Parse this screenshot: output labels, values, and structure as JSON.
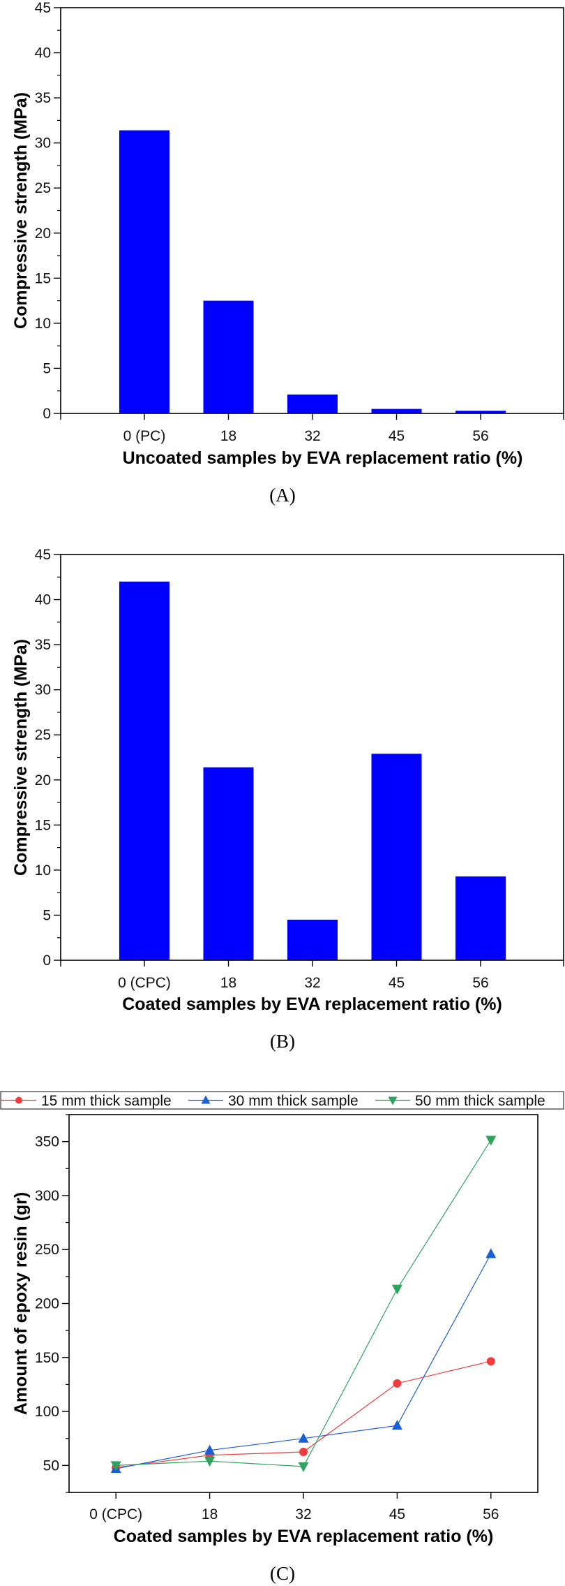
{
  "chart_data": [
    {
      "type": "bar",
      "panel_label": "(A)",
      "categories": [
        "0 (PC)",
        "18",
        "32",
        "45",
        "56"
      ],
      "values": [
        31.4,
        12.5,
        2.1,
        0.5,
        0.3
      ],
      "xlabel": "Uncoated samples by EVA replacement ratio (%)",
      "ylabel": "Compressive strength (MPa)",
      "ylim": [
        0,
        45
      ],
      "yticks": [
        0,
        5,
        10,
        15,
        20,
        25,
        30,
        35,
        40,
        45
      ],
      "bar_color": "#0000FF",
      "grid": false
    },
    {
      "type": "bar",
      "panel_label": "(B)",
      "categories": [
        "0 (CPC)",
        "18",
        "32",
        "45",
        "56"
      ],
      "values": [
        42.0,
        21.4,
        4.5,
        22.9,
        9.3
      ],
      "xlabel": "Coated samples by EVA replacement ratio (%)",
      "ylabel": "Compressive strength (MPa)",
      "ylim": [
        0,
        45
      ],
      "yticks": [
        0,
        5,
        10,
        15,
        20,
        25,
        30,
        35,
        40,
        45
      ],
      "bar_color": "#0000FF",
      "grid": false
    },
    {
      "type": "line",
      "panel_label": "(C)",
      "categories": [
        "0 (CPC)",
        "18",
        "32",
        "45",
        "56"
      ],
      "xlabel": "Coated samples by EVA replacement ratio (%)",
      "ylabel": "Amount of epoxy resin (gr)",
      "ylim": [
        25,
        375
      ],
      "yticks": [
        50,
        100,
        150,
        200,
        250,
        300,
        350
      ],
      "legend_position": "top",
      "grid": false,
      "series": [
        {
          "name": "15 mm thick sample",
          "marker": "circle",
          "color": "#F03C3C",
          "values": [
            48,
            59.5,
            62.5,
            126,
            146.5
          ]
        },
        {
          "name": "30 mm thick sample",
          "marker": "triangle-up",
          "color": "#1A5FD6",
          "values": [
            47,
            64,
            75,
            87,
            246
          ]
        },
        {
          "name": "50 mm thick sample",
          "marker": "triangle-down",
          "color": "#2FA35E",
          "values": [
            50,
            54,
            49,
            213.5,
            351.5
          ]
        }
      ]
    }
  ]
}
